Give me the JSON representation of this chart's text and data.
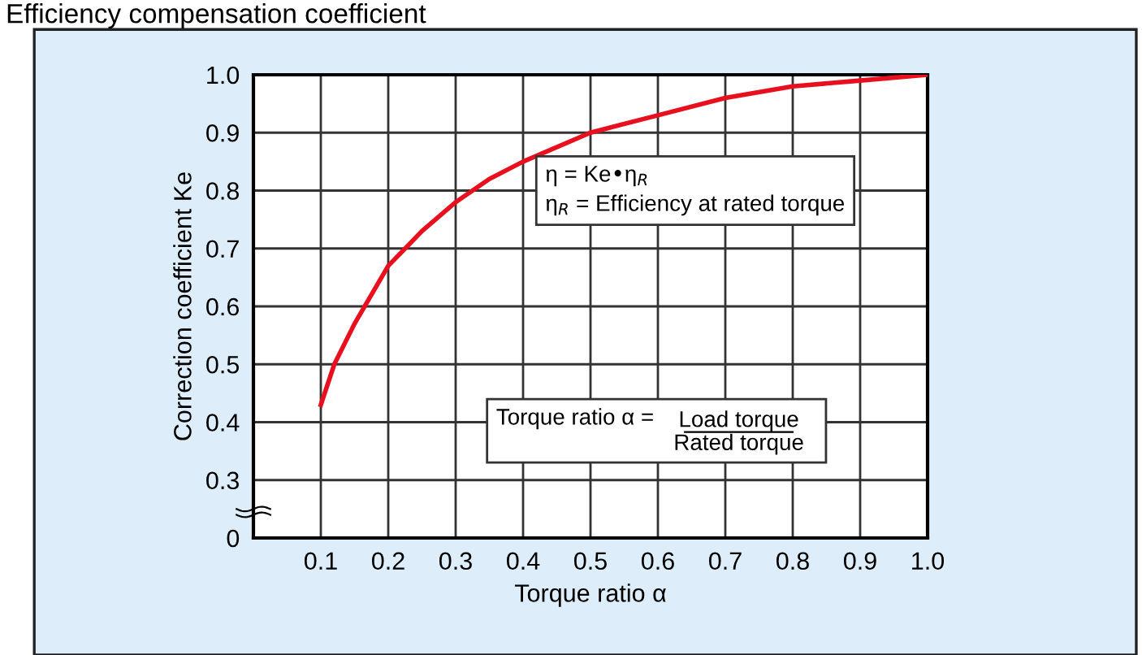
{
  "chart_data": {
    "type": "line",
    "title": "Efficiency compensation coefficient",
    "xlabel": "Torque ratio α",
    "ylabel": "Correction coefficient Ke",
    "x": [
      0.1,
      0.12,
      0.15,
      0.2,
      0.25,
      0.3,
      0.35,
      0.4,
      0.5,
      0.6,
      0.7,
      0.8,
      0.9,
      1.0
    ],
    "series": [
      {
        "color": "#e8101e",
        "values": [
          0.43,
          0.5,
          0.57,
          0.67,
          0.73,
          0.78,
          0.82,
          0.85,
          0.9,
          0.93,
          0.96,
          0.98,
          0.99,
          1.0
        ]
      }
    ],
    "xlim": [
      0,
      1.0
    ],
    "ylim": [
      0.2,
      1.0
    ],
    "xticks": [
      0.1,
      0.2,
      0.3,
      0.4,
      0.5,
      0.6,
      0.7,
      0.8,
      0.9,
      {
        "value": 1.0,
        "label": "1.0"
      }
    ],
    "yticks": [
      {
        "value": 0.2,
        "label": "0"
      },
      0.3,
      0.4,
      0.5,
      0.6,
      0.7,
      0.8,
      0.9,
      {
        "value": 1.0,
        "label": "1.0"
      }
    ],
    "grid": true,
    "marker": "none",
    "line_style": "solid",
    "annotations": [
      "η = Ke•η$_{R}$",
      "η$_{R}$ = Efficiency at rated torque",
      "Torque ratio α =",
      "Load torque",
      "Rated torque"
    ]
  }
}
